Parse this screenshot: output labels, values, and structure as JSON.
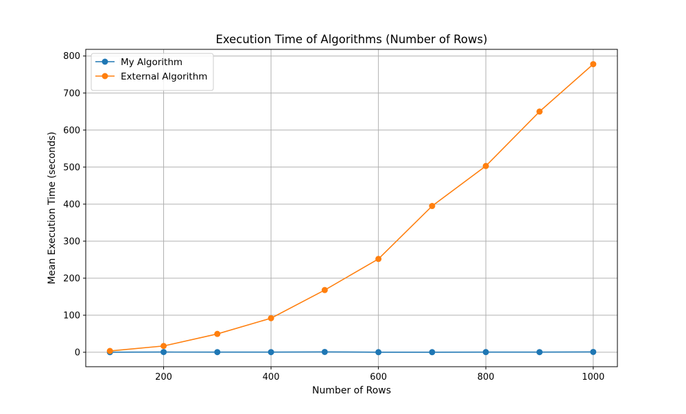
{
  "chart_data": {
    "type": "line",
    "title": "Execution Time of Algorithms (Number of Rows)",
    "xlabel": "Number of Rows",
    "ylabel": "Mean Execution Time (seconds)",
    "x": [
      100,
      200,
      300,
      400,
      500,
      600,
      700,
      800,
      900,
      1000
    ],
    "xlim": [
      55,
      1045
    ],
    "ylim": [
      -39,
      818
    ],
    "xticks": [
      200,
      400,
      600,
      800,
      1000
    ],
    "yticks": [
      0,
      100,
      200,
      300,
      400,
      500,
      600,
      700,
      800
    ],
    "grid": true,
    "legend_position": "upper-left",
    "series": [
      {
        "name": "My Algorithm",
        "color": "#1f77b4",
        "marker": "circle",
        "values": [
          0.3,
          0.6,
          0.4,
          0.4,
          0.9,
          0.3,
          0.3,
          0.5,
          0.4,
          0.9
        ]
      },
      {
        "name": "External Algorithm",
        "color": "#ff7f0e",
        "marker": "circle",
        "values": [
          3.5,
          17,
          49.5,
          92,
          168,
          252,
          395,
          503,
          650,
          778
        ]
      }
    ]
  }
}
